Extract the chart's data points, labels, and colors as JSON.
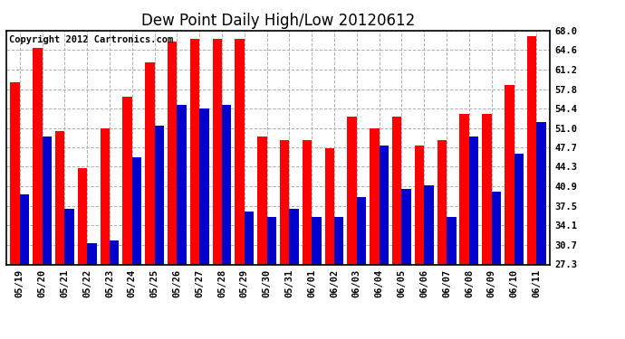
{
  "title": "Dew Point Daily High/Low 20120612",
  "copyright": "Copyright 2012 Cartronics.com",
  "dates": [
    "05/19",
    "05/20",
    "05/21",
    "05/22",
    "05/23",
    "05/24",
    "05/25",
    "05/26",
    "05/27",
    "05/28",
    "05/29",
    "05/30",
    "05/31",
    "06/01",
    "06/02",
    "06/03",
    "06/04",
    "06/05",
    "06/06",
    "06/07",
    "06/08",
    "06/09",
    "06/10",
    "06/11"
  ],
  "high": [
    59.0,
    65.0,
    50.5,
    44.0,
    51.0,
    56.5,
    62.5,
    66.0,
    66.5,
    66.5,
    66.5,
    49.5,
    49.0,
    49.0,
    47.5,
    53.0,
    51.0,
    53.0,
    48.0,
    49.0,
    53.5,
    53.5,
    58.5,
    67.0
  ],
  "low": [
    39.5,
    49.5,
    37.0,
    31.0,
    31.5,
    46.0,
    51.5,
    55.0,
    54.5,
    55.0,
    36.5,
    35.5,
    37.0,
    35.5,
    35.5,
    39.0,
    48.0,
    40.5,
    41.0,
    35.5,
    49.5,
    40.0,
    46.5,
    52.0
  ],
  "high_color": "#ff0000",
  "low_color": "#0000cc",
  "bg_color": "#ffffff",
  "plot_bg_color": "#ffffff",
  "grid_color": "#b0b0b0",
  "ymin": 27.3,
  "ymax": 68.0,
  "yticks": [
    27.3,
    30.7,
    34.1,
    37.5,
    40.9,
    44.3,
    47.7,
    51.0,
    54.4,
    57.8,
    61.2,
    64.6,
    68.0
  ],
  "title_fontsize": 12,
  "copyright_fontsize": 7.5,
  "tick_fontsize": 7.5,
  "bar_width": 0.42
}
